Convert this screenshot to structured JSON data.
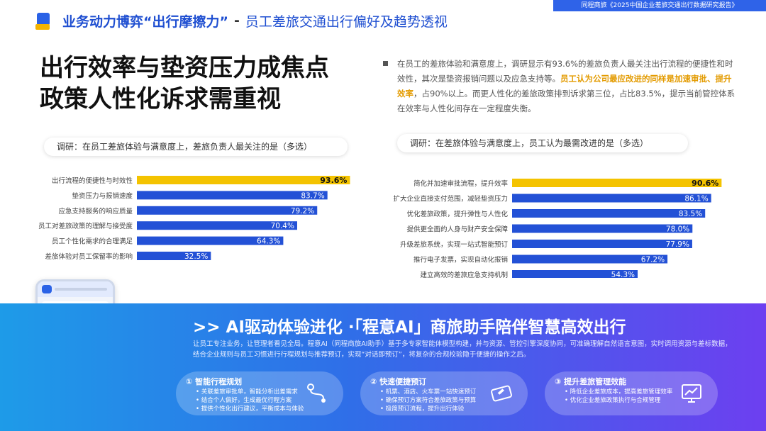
{
  "top_tag": "同程商旅《2025中国企业差旅交通出行数据研究报告》",
  "header": {
    "main": "业务动力博弈“出行摩擦力”",
    "sep": "-",
    "sub": "员工差旅交通出行偏好及趋势透视"
  },
  "title": {
    "line1": "出行效率与垫资压力成焦点",
    "line2": "政策人性化诉求需重视"
  },
  "intro": {
    "part1": "在员工的差旅体验和满意度上，调研显示有93.6%的差旅负责人最关注出行流程的便捷性和时效性，其次是垫资报销问题以及应急支持等。",
    "highlight": "员工认为公司最应改进的同样是加速审批、提升效率",
    "part2": "，占90%以上。而更人性化的差旅政策排到诉求第三位，占比83.5%，提示当前管控体系在效率与人性化间存在一定程度失衡。"
  },
  "survey_left": "调研：在员工差旅体验与满意度上，差旅负责人最关注的是（多选）",
  "survey_right": "调研：在差旅体验与满意度上，员工认为最需改进的是（多选）",
  "chart_data": [
    {
      "type": "bar",
      "orientation": "horizontal",
      "categories": [
        "出行流程的便捷性与时效性",
        "垫资压力与报销速度",
        "应急支持服务的响应质量",
        "员工对差旅政策的理解与接受度",
        "员工个性化需求的合理满足",
        "差旅体验对员工保留率的影响"
      ],
      "values": [
        93.6,
        83.7,
        79.2,
        70.4,
        64.3,
        32.5
      ],
      "labels": [
        "93.6%",
        "83.7%",
        "79.2%",
        "70.4%",
        "64.3%",
        "32.5%"
      ],
      "highlight_index": 0,
      "colors": {
        "bar": "#2351d6",
        "highlight": "#f4c300"
      },
      "xlim": [
        0,
        100
      ]
    },
    {
      "type": "bar",
      "orientation": "horizontal",
      "categories": [
        "简化并加速审批流程，提升效率",
        "扩大企业直接支付范围，减轻垫资压力",
        "优化差旅政策，提升弹性与人性化",
        "提供更全面的人身与财产安全保障",
        "升级差旅系统，实现一站式智能预订",
        "推行电子发票，实现自动化报销",
        "建立高效的差旅应急支持机制"
      ],
      "values": [
        90.6,
        86.1,
        83.5,
        78.0,
        77.9,
        67.2,
        54.3
      ],
      "labels": [
        "90.6%",
        "86.1%",
        "83.5%",
        "78.0%",
        "77.9%",
        "67.2%",
        "54.3%"
      ],
      "highlight_index": 0,
      "colors": {
        "bar": "#2351d6",
        "highlight": "#f4c300"
      },
      "xlim": [
        0,
        100
      ]
    }
  ],
  "bottom": {
    "title": ">> AI驱动体验进化 ·「程意AI」商旅助手陪伴智慧高效出行",
    "desc": "让员工专注业务，让管理者看见全局。程意AI（同程商旅AI助手）基于多专家智能体模型构建，并与资源、管控引擎深度协同，可准确理解自然语言意图，实时调用资源与差标数据，结合企业规则与员工习惯进行行程规划与推荐预订，实现“对话即预订”，将复杂的合规校验隐于便捷的操作之后。",
    "cards": [
      {
        "title": "① 智能行程规划",
        "items": [
          "关联差旅审批单，智能分析出差需求",
          "结合个人偏好，生成最优行程方案",
          "提供个性化出行建议，平衡成本与体验"
        ],
        "icon": "route-icon"
      },
      {
        "title": "② 快速便捷预订",
        "items": [
          "机票、酒店、火车票一站快速预订",
          "确保预订方案符合差旅政策与预算",
          "极简预订流程，提升出行体验"
        ],
        "icon": "ticket-icon"
      },
      {
        "title": "③ 提升差旅管理效能",
        "items": [
          "降低企业差旅成本，提高差旅管理效率",
          "优化企业差旅政策执行与合规管理"
        ],
        "icon": "chart-monitor-icon"
      }
    ]
  }
}
